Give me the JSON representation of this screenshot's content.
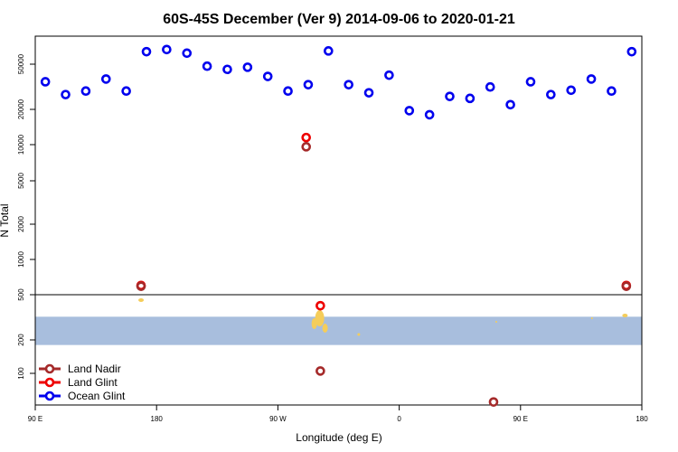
{
  "chart_data": {
    "type": "scatter",
    "title": "60S-45S December (Ver 9)   2014-09-06 to 2020-01-21",
    "xlabel": "Longitude (deg E)",
    "ylabel": "N Total",
    "x_tick_labels": [
      "90 E",
      "180",
      "90 W",
      "0",
      "90 E",
      "180"
    ],
    "x_tick_values": [
      90,
      180,
      270,
      360,
      450,
      540
    ],
    "xlim": [
      90,
      540
    ],
    "y_scale": "log",
    "y_tick_labels": [
      "100",
      "200",
      "500",
      "1000",
      "2000",
      "5000",
      "10000",
      "20000",
      "50000"
    ],
    "y_tick_values": [
      100,
      200,
      500,
      1000,
      2000,
      5000,
      10000,
      20000,
      50000
    ],
    "ylim": [
      60,
      90000
    ],
    "land_band": {
      "ymin": 180,
      "ymax": 320,
      "color": "#a8bedd"
    },
    "series": [
      {
        "name": "Ocean Glint",
        "color": "#0000ee",
        "points": [
          {
            "x": 97.5,
            "y": 35000
          },
          {
            "x": 112.5,
            "y": 27000
          },
          {
            "x": 127.5,
            "y": 29000
          },
          {
            "x": 142.5,
            "y": 37000
          },
          {
            "x": 157.5,
            "y": 29000
          },
          {
            "x": 172.5,
            "y": 65000
          },
          {
            "x": 187.5,
            "y": 68000
          },
          {
            "x": 202.5,
            "y": 63000
          },
          {
            "x": 217.5,
            "y": 48000
          },
          {
            "x": 232.5,
            "y": 45000
          },
          {
            "x": 247.5,
            "y": 47000
          },
          {
            "x": 262.5,
            "y": 39000
          },
          {
            "x": 277.5,
            "y": 29000
          },
          {
            "x": 292.5,
            "y": 33000
          },
          {
            "x": 307.5,
            "y": 66000
          },
          {
            "x": 322.5,
            "y": 33000
          },
          {
            "x": 337.5,
            "y": 28000
          },
          {
            "x": 352.5,
            "y": 40000
          },
          {
            "x": 367.5,
            "y": 19500
          },
          {
            "x": 382.5,
            "y": 18000
          },
          {
            "x": 397.5,
            "y": 26000
          },
          {
            "x": 412.5,
            "y": 25000
          },
          {
            "x": 427.5,
            "y": 31500
          },
          {
            "x": 442.5,
            "y": 22000
          },
          {
            "x": 457.5,
            "y": 35000
          },
          {
            "x": 472.5,
            "y": 27000
          },
          {
            "x": 487.5,
            "y": 29500
          },
          {
            "x": 502.5,
            "y": 37000
          },
          {
            "x": 517.5,
            "y": 29000
          },
          {
            "x": 532.5,
            "y": 65000
          }
        ]
      },
      {
        "name": "Land Glint",
        "color": "#ee0000",
        "points": [
          {
            "x": 168.5,
            "y": 600
          },
          {
            "x": 291,
            "y": 11500
          },
          {
            "x": 301.5,
            "y": 400
          },
          {
            "x": 528.5,
            "y": 600
          }
        ]
      },
      {
        "name": "Land Nadir",
        "color": "#a52a2a",
        "points": [
          {
            "x": 168.5,
            "y": 590
          },
          {
            "x": 291,
            "y": 9600
          },
          {
            "x": 301.5,
            "y": 105
          },
          {
            "x": 430,
            "y": 63
          },
          {
            "x": 528.5,
            "y": 590
          }
        ]
      }
    ],
    "legend": {
      "position": "bottom-left",
      "entries": [
        {
          "label": "Land Nadir",
          "color": "#a52a2a"
        },
        {
          "label": "Land Glint",
          "color": "#ee0000"
        },
        {
          "label": "Ocean Glint",
          "color": "#0000ee"
        }
      ]
    }
  }
}
